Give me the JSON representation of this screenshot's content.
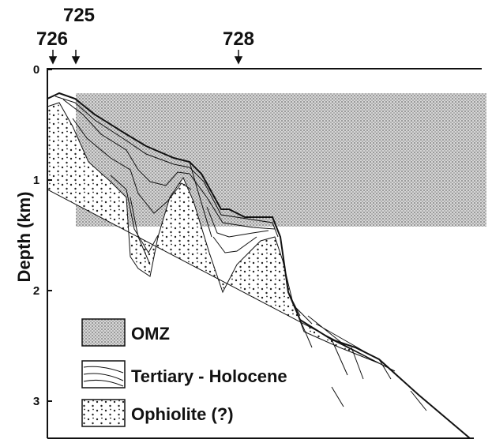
{
  "sites": [
    "726",
    "725",
    "728"
  ],
  "axis": {
    "label": "Depth (km)",
    "ticks": [
      0,
      1,
      2,
      3
    ]
  },
  "legend": [
    "OMZ",
    "Tertiary - Holocene",
    "Ophiolite (?)"
  ]
}
